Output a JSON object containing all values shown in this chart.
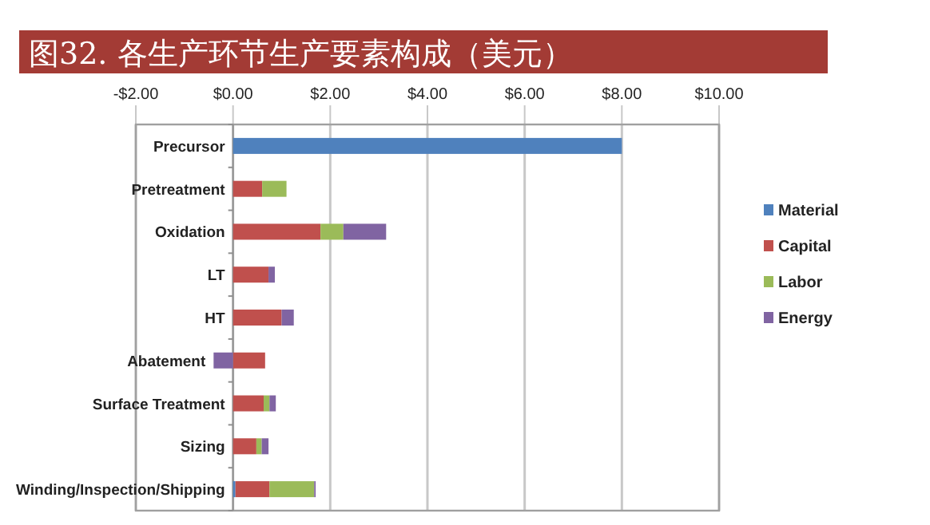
{
  "chart_data": {
    "type": "bar",
    "orientation": "horizontal",
    "stacked": true,
    "title": "图32. 各生产环节生产要素构成（美元）",
    "categories": [
      "Precursor",
      "Pretreatment",
      "Oxidation",
      "LT",
      "HT",
      "Abatement",
      "Surface Treatment",
      "Sizing",
      "Winding/Inspection/Shipping"
    ],
    "series": [
      {
        "name": "Material",
        "color": "#4f81bd",
        "values": [
          8.0,
          0,
          0,
          0,
          0,
          0,
          0,
          0,
          0.05
        ]
      },
      {
        "name": "Capital",
        "color": "#c0504d",
        "values": [
          0,
          0.6,
          1.8,
          0.73,
          1.0,
          0.66,
          0.63,
          0.48,
          0.7
        ]
      },
      {
        "name": "Labor",
        "color": "#9bbb59",
        "values": [
          0,
          0.5,
          0.47,
          0,
          0,
          0,
          0.12,
          0.11,
          0.92
        ]
      },
      {
        "name": "Energy",
        "color": "#8064a2",
        "values": [
          0,
          0,
          0.88,
          0.13,
          0.25,
          -0.4,
          0.13,
          0.14,
          0.03
        ]
      }
    ],
    "xlim": [
      -2,
      10
    ],
    "xticks": [
      {
        "value": -2,
        "label": "-$2.00"
      },
      {
        "value": 0,
        "label": "$0.00"
      },
      {
        "value": 2,
        "label": "$2.00"
      },
      {
        "value": 4,
        "label": "$4.00"
      },
      {
        "value": 6,
        "label": "$6.00"
      },
      {
        "value": 8,
        "label": "$8.00"
      },
      {
        "value": 10,
        "label": "$10.00"
      }
    ],
    "grid": "x",
    "legend": "right"
  }
}
